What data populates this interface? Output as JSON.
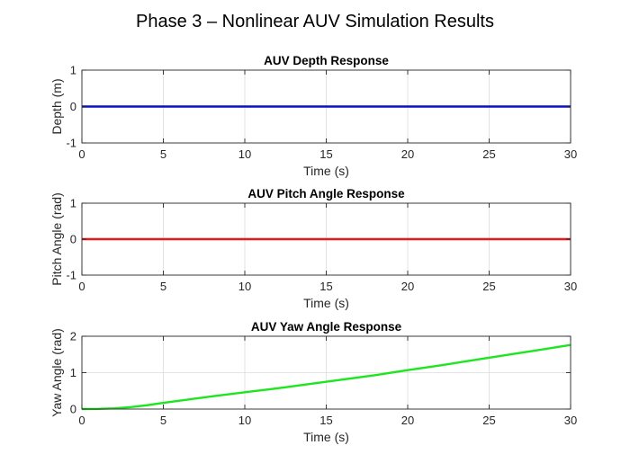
{
  "figure": {
    "suptitle": "Phase 3 – Nonlinear AUV Simulation Results"
  },
  "chart_data": [
    {
      "type": "line",
      "title": "AUV Depth Response",
      "xlabel": "Time (s)",
      "ylabel": "Depth (m)",
      "xlim": [
        0,
        30
      ],
      "ylim": [
        -1,
        1
      ],
      "xticks": [
        0,
        5,
        10,
        15,
        20,
        25,
        30
      ],
      "yticks": [
        -1,
        0,
        1
      ],
      "grid": true,
      "legend": "none",
      "series": [
        {
          "color": "#0a10c8",
          "x": [
            0,
            5,
            10,
            15,
            20,
            25,
            30
          ],
          "y": [
            0,
            0,
            0,
            0,
            0,
            0,
            0
          ]
        }
      ]
    },
    {
      "type": "line",
      "title": "AUV Pitch Angle Response",
      "xlabel": "Time (s)",
      "ylabel": "Pitch Angle (rad)",
      "xlim": [
        0,
        30
      ],
      "ylim": [
        -1,
        1
      ],
      "xticks": [
        0,
        5,
        10,
        15,
        20,
        25,
        30
      ],
      "yticks": [
        -1,
        0,
        1
      ],
      "grid": true,
      "legend": "none",
      "series": [
        {
          "color": "#e41a1c",
          "x": [
            0,
            5,
            10,
            15,
            20,
            25,
            30
          ],
          "y": [
            0,
            0,
            0,
            0,
            0,
            0,
            0
          ]
        }
      ]
    },
    {
      "type": "line",
      "title": "AUV Yaw Angle Response",
      "xlabel": "Time (s)",
      "ylabel": "Yaw Angle (rad)",
      "xlim": [
        0,
        30
      ],
      "ylim": [
        0,
        2
      ],
      "xticks": [
        0,
        5,
        10,
        15,
        20,
        25,
        30
      ],
      "yticks": [
        0,
        1,
        2
      ],
      "grid": true,
      "legend": "none",
      "series": [
        {
          "color": "#1ee61e",
          "x": [
            0,
            1,
            2,
            3,
            4,
            5,
            6,
            8,
            10,
            12,
            14,
            16,
            18,
            20,
            22,
            24,
            26,
            28,
            30
          ],
          "y": [
            0.0,
            0.005,
            0.02,
            0.055,
            0.105,
            0.17,
            0.23,
            0.35,
            0.46,
            0.57,
            0.69,
            0.81,
            0.93,
            1.07,
            1.2,
            1.34,
            1.48,
            1.62,
            1.76
          ]
        }
      ]
    }
  ]
}
